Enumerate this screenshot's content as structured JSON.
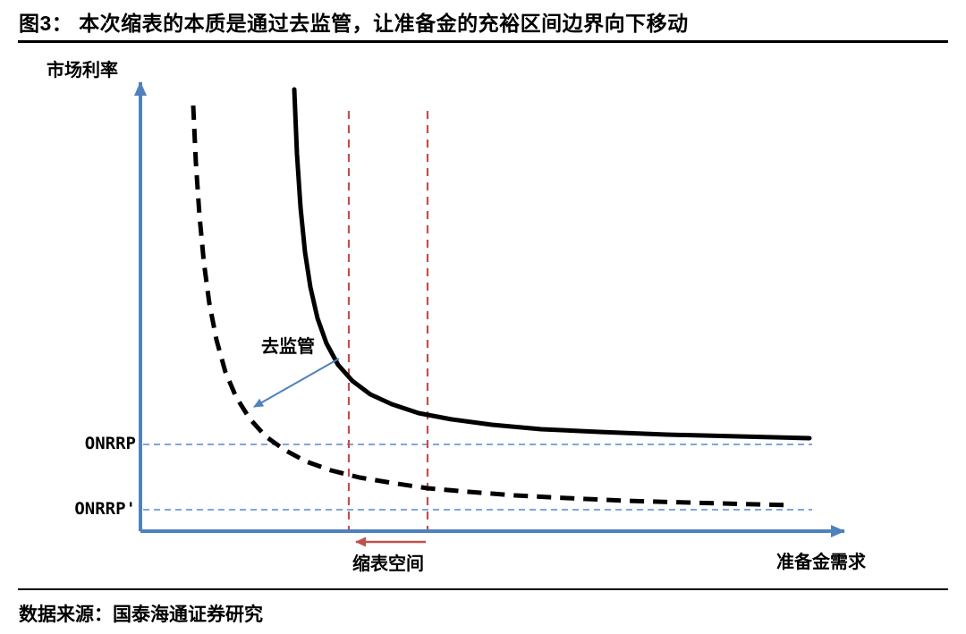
{
  "title": "图3：  本次缩表的本质是通过去监管，让准备金的充裕区间边界向下移动",
  "source": "数据来源：国泰海通证券研究",
  "chart_data": {
    "type": "line",
    "title": "图3：  本次缩表的本质是通过去监管，让准备金的充裕区间边界向下移动",
    "xlabel": "准备金需求",
    "ylabel": "市场利率",
    "legend": "off",
    "grid": "off",
    "labels": {
      "onrrp": "ONRRP",
      "onrrp_prime": "ONRRP'",
      "deregulation": "去监管",
      "shrink_space": "缩表空间"
    },
    "colors": {
      "axis": "#4f81bd",
      "ref": "#7da7dc",
      "red": "#c0504d",
      "curve": "#000000"
    },
    "geometry": {
      "x_axis": {
        "x1": 157,
        "y1": 594,
        "x2": 944,
        "y2": 594
      },
      "y_axis": {
        "x1": 157,
        "y1": 594,
        "x2": 157,
        "y2": 92
      },
      "onrrp_line": {
        "y": 497,
        "x1": 160,
        "x2": 908
      },
      "onrrp_prime_line": {
        "y": 570,
        "x1": 160,
        "x2": 908
      },
      "red_vlines": [
        {
          "x": 390,
          "y1": 124,
          "y2": 592
        },
        {
          "x": 478,
          "y1": 124,
          "y2": 592
        }
      ],
      "shrink_arrow": {
        "x1": 476,
        "y1": 606,
        "x2": 398,
        "y2": 606
      },
      "dereg_arrow": {
        "x1": 379,
        "y1": 401,
        "x2": 284,
        "y2": 455
      },
      "series": [
        {
          "id": "solid-demand-curve",
          "dash": false,
          "width": 5,
          "points": [
            [
              329,
              100
            ],
            [
              332,
              172
            ],
            [
              336,
              232
            ],
            [
              341,
              282
            ],
            [
              347,
              321
            ],
            [
              355,
              356
            ],
            [
              365,
              384
            ],
            [
              378,
              408
            ],
            [
              394,
              426
            ],
            [
              414,
              441
            ],
            [
              438,
              452
            ],
            [
              468,
              462
            ],
            [
              505,
              469
            ],
            [
              550,
              475
            ],
            [
              605,
              480
            ],
            [
              670,
              483
            ],
            [
              745,
              486
            ],
            [
              825,
              488
            ],
            [
              905,
              490
            ]
          ]
        },
        {
          "id": "dashed-demand-curve",
          "dash": true,
          "width": 5,
          "points": [
            [
              216,
              118
            ],
            [
              219,
              182
            ],
            [
              223,
              241
            ],
            [
              228,
              294
            ],
            [
              234,
              339
            ],
            [
              242,
              380
            ],
            [
              252,
              416
            ],
            [
              264,
              444
            ],
            [
              279,
              468
            ],
            [
              297,
              488
            ],
            [
              318,
              503
            ],
            [
              342,
              516
            ],
            [
              370,
              526
            ],
            [
              402,
              534
            ],
            [
              438,
              540
            ],
            [
              478,
              546
            ],
            [
              524,
              550
            ],
            [
              576,
              554
            ],
            [
              634,
              557
            ],
            [
              700,
              560
            ],
            [
              770,
              562
            ],
            [
              845,
              564
            ],
            [
              885,
              565
            ]
          ]
        }
      ]
    }
  }
}
